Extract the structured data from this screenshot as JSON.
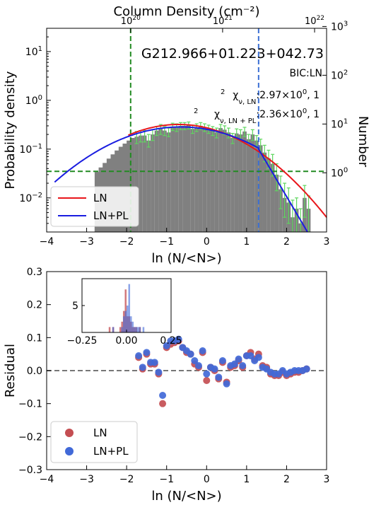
{
  "chart_data": [
    {
      "type": "bar",
      "title": "G212.966+01.223+042.73",
      "xlabel": "ln (N/<N>)",
      "ylabel": "Probability density",
      "ylabel_right": "Number",
      "top_axis_label": "Column Density (cm⁻²)",
      "xlim": [
        -4,
        3
      ],
      "ylim": [
        0.002,
        30
      ],
      "yscale": "log",
      "x_ticks": [
        "−4",
        "−3",
        "−2",
        "−1",
        "0",
        "1",
        "2",
        "3"
      ],
      "y_ticks_left": [
        {
          "value": 0.01,
          "label": "10",
          "exp": "−2"
        },
        {
          "value": 0.1,
          "label": "10",
          "exp": "−1"
        },
        {
          "value": 1,
          "label": "10",
          "exp": "0"
        },
        {
          "value": 10,
          "label": "10",
          "exp": "1"
        }
      ],
      "y_ticks_right": [
        {
          "value": 1,
          "label": "10",
          "exp": "0"
        },
        {
          "value": 10,
          "label": "10",
          "exp": "1"
        },
        {
          "value": 100,
          "label": "10",
          "exp": "2"
        },
        {
          "value": 1000,
          "label": "10",
          "exp": "3"
        }
      ],
      "right_axis_scale": 0.0327,
      "top_ticks": [
        {
          "value": 1e+20,
          "label": "10",
          "exp": "20",
          "x": -1.9
        },
        {
          "value": 1e+21,
          "label": "10",
          "exp": "21",
          "x": 0.4
        },
        {
          "value": 1e+22,
          "label": "10",
          "exp": "22",
          "x": 2.7
        }
      ],
      "annotations": {
        "bic": "BIC:LN",
        "chi_ln_value": ":2.97×10",
        "chi_ln_exp": "0",
        "chi_ln_tail": ", 1",
        "chi_lnpl_value": ":2.36×10",
        "chi_lnpl_exp": "0",
        "chi_lnpl_tail": ", 1"
      },
      "histogram": {
        "bin_width": 0.1,
        "x": [
          -2.8,
          -2.7,
          -2.6,
          -2.5,
          -2.4,
          -2.3,
          -2.2,
          -2.1,
          -2.0,
          -1.9,
          -1.8,
          -1.7,
          -1.6,
          -1.5,
          -1.4,
          -1.3,
          -1.2,
          -1.1,
          -1.0,
          -0.9,
          -0.8,
          -0.7,
          -0.6,
          -0.5,
          -0.4,
          -0.3,
          -0.2,
          -0.1,
          0.0,
          0.1,
          0.2,
          0.3,
          0.4,
          0.5,
          0.6,
          0.7,
          0.8,
          0.9,
          1.0,
          1.1,
          1.2,
          1.3,
          1.4,
          1.5,
          1.6,
          1.7,
          1.8,
          1.9,
          2.0,
          2.1,
          2.2,
          2.3,
          2.4,
          2.5
        ],
        "values": [
          0.0035,
          0.0035,
          0.0035,
          0.0035,
          0.0035,
          0.0035,
          0.0035,
          0.0035,
          0.0035,
          0.0035,
          0.18,
          0.19,
          0.19,
          0.15,
          0.2,
          0.24,
          0.26,
          0.24,
          0.22,
          0.29,
          0.28,
          0.3,
          0.3,
          0.31,
          0.26,
          0.28,
          0.3,
          0.28,
          0.26,
          0.24,
          0.22,
          0.27,
          0.25,
          0.22,
          0.17,
          0.21,
          0.2,
          0.23,
          0.16,
          0.2,
          0.15,
          0.12,
          0.085,
          0.065,
          0.05,
          0.03,
          0.015,
          0.01,
          0.008,
          0.004,
          0.0035,
          0.0035,
          0.0035,
          0.0035
        ],
        "shape": {
          "x": [
            -2.8,
            -2.7,
            -2.6,
            -2.5,
            -2.4,
            -2.3,
            -2.2,
            -2.1,
            -2.0,
            -1.9
          ],
          "values": [
            0.034,
            0.042,
            0.052,
            0.064,
            0.078,
            0.094,
            0.112,
            0.13,
            0.15,
            0.17
          ]
        },
        "tail_bars": {
          "x": [
            2.2,
            2.3,
            2.4,
            2.5
          ],
          "values": [
            0.006,
            0.003,
            0.01,
            0.006
          ]
        },
        "error_bars": {
          "x": [
            -1.8,
            -1.7,
            -1.6,
            -1.5,
            -1.4,
            -1.3,
            -1.2,
            -1.1,
            -1.0,
            -0.9,
            -0.8,
            -0.7,
            -0.6,
            -0.5,
            -0.4,
            -0.3,
            -0.2,
            -0.1,
            0.0,
            0.1,
            0.2,
            0.3,
            0.4,
            0.5,
            0.6,
            0.7,
            0.8,
            0.9,
            1.0,
            1.1,
            1.2,
            1.3,
            1.4,
            1.5,
            1.6,
            1.7,
            1.8,
            1.9,
            2.0,
            2.1,
            2.2,
            2.3,
            2.4,
            2.5
          ],
          "low": [
            0.13,
            0.14,
            0.14,
            0.11,
            0.15,
            0.19,
            0.2,
            0.19,
            0.18,
            0.24,
            0.23,
            0.25,
            0.25,
            0.26,
            0.21,
            0.23,
            0.25,
            0.23,
            0.21,
            0.19,
            0.17,
            0.22,
            0.2,
            0.17,
            0.13,
            0.16,
            0.15,
            0.18,
            0.12,
            0.15,
            0.11,
            0.085,
            0.055,
            0.04,
            0.028,
            0.014,
            0.006,
            0.004,
            0.003,
            0.002,
            0.002,
            0.002,
            0.004,
            0.002
          ],
          "high": [
            0.23,
            0.24,
            0.24,
            0.2,
            0.25,
            0.29,
            0.32,
            0.29,
            0.27,
            0.34,
            0.33,
            0.35,
            0.35,
            0.36,
            0.31,
            0.33,
            0.35,
            0.33,
            0.31,
            0.29,
            0.27,
            0.32,
            0.3,
            0.27,
            0.21,
            0.26,
            0.25,
            0.28,
            0.2,
            0.25,
            0.19,
            0.16,
            0.12,
            0.095,
            0.078,
            0.05,
            0.028,
            0.02,
            0.016,
            0.009,
            0.01,
            0.006,
            0.018,
            0.011
          ]
        }
      },
      "series": [
        {
          "name": "LN",
          "color": "#e8161b",
          "mu": -0.7,
          "sigma": 1.25,
          "peak": 0.32,
          "x_range": [
            -1.96,
            3.0
          ]
        },
        {
          "name": "LN+PL",
          "color": "#1a1de0",
          "mu": -0.65,
          "sigma": 1.38,
          "peak": 0.285,
          "x_range": [
            -3.8,
            1.3
          ],
          "pl_x_range": [
            1.3,
            2.85
          ],
          "pl_start": 0.1,
          "pl_slope": -3.2
        }
      ],
      "reference_lines": [
        {
          "orientation": "vertical",
          "value": -1.9,
          "color": "#228b22",
          "style": "dashed"
        },
        {
          "orientation": "vertical",
          "value": 1.3,
          "color": "#3b6fd4",
          "style": "dashed"
        },
        {
          "orientation": "horizontal",
          "value": 0.035,
          "color": "#228b22",
          "style": "dashed"
        }
      ],
      "legend": {
        "position": "lower-left",
        "entries": [
          "LN",
          "LN+PL"
        ]
      },
      "colors": {
        "bars": "#808080",
        "error_bars": "#5ed65e"
      }
    },
    {
      "type": "scatter",
      "xlabel": "ln (N/<N>)",
      "ylabel": "Residual",
      "xlim": [
        -4,
        3
      ],
      "ylim": [
        -0.3,
        0.3
      ],
      "x_ticks": [
        "−4",
        "−3",
        "−2",
        "−1",
        "0",
        "1",
        "2",
        "3"
      ],
      "y_ticks": [
        {
          "value": -0.3,
          "label": "−0.3"
        },
        {
          "value": -0.2,
          "label": "−0.2"
        },
        {
          "value": -0.1,
          "label": "−0.1"
        },
        {
          "value": 0.0,
          "label": "0.0"
        },
        {
          "value": 0.1,
          "label": "0.1"
        },
        {
          "value": 0.2,
          "label": "0.2"
        },
        {
          "value": 0.3,
          "label": "0.3"
        }
      ],
      "zero_line": 0.0,
      "series": [
        {
          "name": "LN",
          "color": "#c44e52",
          "x": [
            -1.7,
            -1.6,
            -1.5,
            -1.4,
            -1.3,
            -1.2,
            -1.1,
            -1.0,
            -0.9,
            -0.8,
            -0.7,
            -0.6,
            -0.5,
            -0.4,
            -0.3,
            -0.2,
            -0.1,
            0.0,
            0.1,
            0.2,
            0.3,
            0.4,
            0.5,
            0.6,
            0.7,
            0.8,
            0.9,
            1.0,
            1.1,
            1.2,
            1.3,
            1.4,
            1.5,
            1.6,
            1.7,
            1.8,
            1.9,
            2.0,
            2.1,
            2.2,
            2.3,
            2.4,
            2.5
          ],
          "y": [
            0.04,
            0.005,
            0.05,
            0.02,
            0.02,
            -0.01,
            -0.1,
            0.07,
            0.08,
            0.085,
            0.09,
            0.07,
            0.055,
            0.05,
            0.02,
            0.01,
            0.055,
            -0.03,
            0.01,
            0.0,
            -0.025,
            0.025,
            -0.035,
            0.01,
            0.015,
            0.03,
            0.01,
            0.045,
            0.055,
            0.035,
            0.05,
            0.015,
            0.01,
            -0.01,
            -0.015,
            -0.015,
            -0.005,
            -0.015,
            -0.01,
            -0.005,
            -0.005,
            0.0,
            0.005
          ]
        },
        {
          "name": "LN+PL",
          "color": "#4169d8",
          "x": [
            -1.7,
            -1.6,
            -1.5,
            -1.4,
            -1.3,
            -1.2,
            -1.1,
            -1.0,
            -0.9,
            -0.8,
            -0.7,
            -0.6,
            -0.5,
            -0.4,
            -0.3,
            -0.2,
            -0.1,
            0.0,
            0.1,
            0.2,
            0.3,
            0.4,
            0.5,
            0.6,
            0.7,
            0.8,
            0.9,
            1.0,
            1.1,
            1.2,
            1.3,
            1.4,
            1.5,
            1.6,
            1.7,
            1.8,
            1.9,
            2.0,
            2.1,
            2.2,
            2.3,
            2.4,
            2.5
          ],
          "y": [
            0.045,
            0.01,
            0.055,
            0.025,
            0.025,
            -0.005,
            -0.075,
            0.075,
            0.09,
            0.09,
            0.095,
            0.07,
            0.06,
            0.05,
            0.03,
            0.015,
            0.06,
            -0.01,
            0.01,
            0.005,
            -0.02,
            0.03,
            -0.04,
            0.015,
            0.02,
            0.035,
            0.015,
            0.045,
            0.045,
            0.03,
            0.04,
            0.01,
            0.005,
            -0.005,
            -0.01,
            -0.01,
            0.0,
            -0.01,
            -0.005,
            0.0,
            0.0,
            0.0,
            0.005
          ]
        }
      ],
      "legend": {
        "position": "lower-left",
        "entries": [
          "LN",
          "LN+PL"
        ]
      },
      "inset": {
        "type": "histogram",
        "xlim": [
          -0.25,
          0.25
        ],
        "ylim": [
          0,
          10
        ],
        "x_ticks": [
          {
            "value": -0.25,
            "label": "−0.25"
          },
          {
            "value": 0.0,
            "label": "0.00"
          },
          {
            "value": 0.25,
            "label": "0.25"
          }
        ],
        "y_ticks": [
          {
            "value": 5,
            "label": "5"
          }
        ],
        "bins": [
          -0.1,
          -0.09,
          -0.08,
          -0.07,
          -0.06,
          -0.05,
          -0.04,
          -0.03,
          -0.02,
          -0.01,
          0.0,
          0.01,
          0.02,
          0.03,
          0.04,
          0.05,
          0.06,
          0.07,
          0.08,
          0.09
        ],
        "series": [
          {
            "name": "LN",
            "color": "#c44e52",
            "counts": [
              1,
              0,
              1,
              0,
              0,
              0,
              1,
              2,
              4,
              8,
              3,
              3,
              2,
              1,
              1,
              1,
              0,
              1,
              0,
              0
            ]
          },
          {
            "name": "LN+PL",
            "color": "#4169d8",
            "counts": [
              0,
              0,
              1,
              0,
              0,
              0,
              0,
              1,
              3,
              4,
              5,
              9,
              3,
              2,
              1,
              1,
              1,
              1,
              0,
              1
            ]
          }
        ]
      }
    }
  ]
}
